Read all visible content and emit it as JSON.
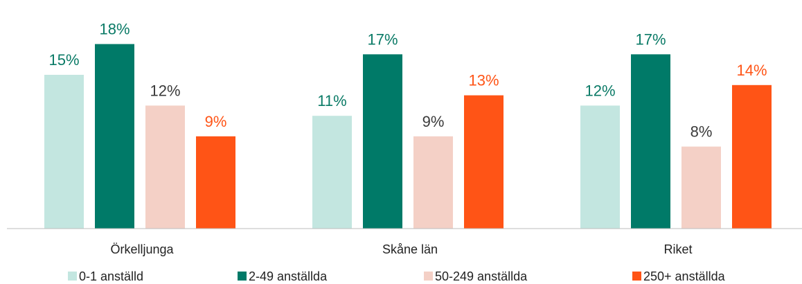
{
  "chart_data": {
    "type": "bar",
    "categories": [
      "Örkelljunga",
      "Skåne län",
      "Riket"
    ],
    "series": [
      {
        "name": "0-1 anställd",
        "color": "#c3e6e0",
        "label_color": "#0a7a66",
        "values": [
          15,
          11,
          12
        ],
        "labels": [
          "15%",
          "11%",
          "12%"
        ]
      },
      {
        "name": "2-49 anställda",
        "color": "#007a68",
        "label_color": "#0a7a66",
        "values": [
          18,
          17,
          17
        ],
        "labels": [
          "18%",
          "17%",
          "17%"
        ]
      },
      {
        "name": "50-249 anställda",
        "color": "#f4d0c6",
        "label_color": "#3a3a3a",
        "values": [
          12,
          9,
          8
        ],
        "labels": [
          "12%",
          "9%",
          "8%"
        ]
      },
      {
        "name": "250+ anställda",
        "color": "#ff5416",
        "label_color": "#ff5416",
        "values": [
          9,
          13,
          14
        ],
        "labels": [
          "9%",
          "13%",
          "14%"
        ]
      }
    ],
    "ylim": [
      0,
      18
    ],
    "grid": false,
    "legend": "bottom"
  }
}
